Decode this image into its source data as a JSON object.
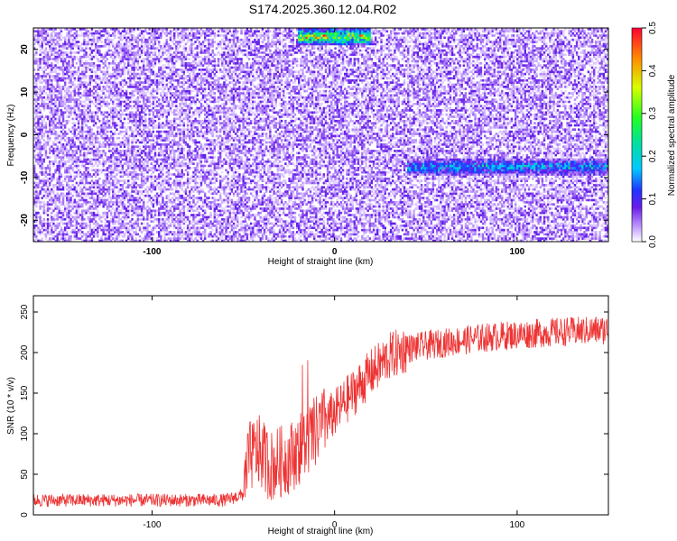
{
  "title": "S174.2025.360.12.04.R02",
  "chart_data": [
    {
      "type": "heatmap",
      "xlabel": "Height of straight line (km)",
      "ylabel": "Frequency (Hz)",
      "xlim": [
        -165,
        150
      ],
      "ylim": [
        -25,
        25
      ],
      "x_ticks": [
        -100,
        0,
        100
      ],
      "y_ticks": [
        -20,
        -10,
        0,
        10,
        20
      ],
      "colorbar": {
        "label": "Normalized spectral amplitude",
        "range": [
          0,
          0.5
        ],
        "ticks": [
          "0.0",
          "0.1",
          "0.2",
          "0.3",
          "0.4",
          "0.5"
        ]
      },
      "features": [
        {
          "x": [
            40,
            150
          ],
          "y": -7.5,
          "amplitude": 0.2
        },
        {
          "x": [
            -20,
            20
          ],
          "y": 23,
          "amplitude": 0.5
        }
      ]
    },
    {
      "type": "line",
      "xlabel": "Height of straight line (km)",
      "ylabel": "SNR (10 * v/v)",
      "xlim": [
        -165,
        150
      ],
      "ylim": [
        0,
        270
      ],
      "x_ticks": [
        -100,
        0,
        100
      ],
      "y_ticks": [
        0,
        50,
        100,
        150,
        200,
        250
      ],
      "color": "#ee3333",
      "profile": [
        [
          -165,
          18
        ],
        [
          -60,
          18
        ],
        [
          -50,
          25
        ],
        [
          -47,
          70
        ],
        [
          -42,
          80
        ],
        [
          -35,
          60
        ],
        [
          -25,
          70
        ],
        [
          -15,
          90
        ],
        [
          -5,
          115
        ],
        [
          0,
          125
        ],
        [
          10,
          150
        ],
        [
          20,
          175
        ],
        [
          30,
          195
        ],
        [
          40,
          205
        ],
        [
          60,
          212
        ],
        [
          80,
          218
        ],
        [
          100,
          222
        ],
        [
          120,
          225
        ],
        [
          150,
          228
        ]
      ]
    }
  ]
}
